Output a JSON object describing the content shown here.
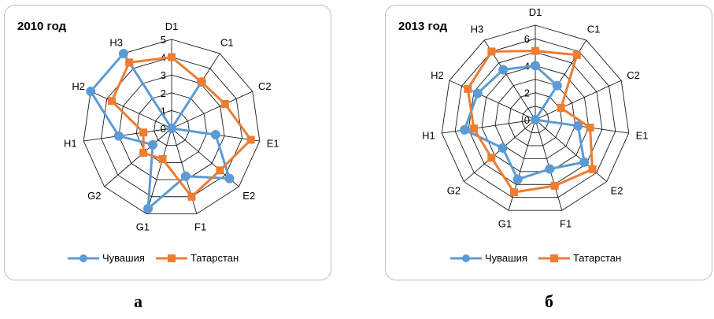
{
  "chart_data": [
    {
      "type": "radar",
      "title": "2010 год",
      "categories": [
        "D1",
        "C1",
        "C2",
        "E1",
        "E2",
        "F1",
        "G1",
        "G2",
        "H1",
        "H2",
        "H3"
      ],
      "radial_ticks": [
        "0",
        "1",
        "2",
        "3",
        "4",
        "5"
      ],
      "rmax": 5,
      "series": [
        {
          "name": "Чувашия",
          "color": "#5b9bd5",
          "marker": "circle",
          "values": [
            0,
            3.1,
            0,
            2.5,
            4.3,
            2.8,
            4.7,
            1.4,
            3.0,
            5.0,
            5.0
          ]
        },
        {
          "name": "Татарстан",
          "color": "#ed7d31",
          "marker": "square",
          "values": [
            4.0,
            3.1,
            3.3,
            4.5,
            3.6,
            4.0,
            1.8,
            2.1,
            1.6,
            3.7,
            4.4
          ]
        }
      ],
      "legend": "bottom",
      "caption": "а"
    },
    {
      "type": "radar",
      "title": "2013 год",
      "categories": [
        "D1",
        "C1",
        "C2",
        "E1",
        "E2",
        "F1",
        "G1",
        "G2",
        "H1",
        "H2",
        "H3"
      ],
      "radial_ticks": [
        "0",
        "2",
        "4",
        "6"
      ],
      "rmax": 7,
      "series": [
        {
          "name": "Чувашия",
          "color": "#5b9bd5",
          "marker": "circle",
          "values": [
            4.0,
            3.0,
            0,
            3.2,
            4.8,
            3.8,
            4.6,
            3.2,
            5.3,
            4.7,
            4.4
          ]
        },
        {
          "name": "Татарстан",
          "color": "#ed7d31",
          "marker": "square",
          "values": [
            5.1,
            5.7,
            2.1,
            4.1,
            5.6,
            5.1,
            5.6,
            4.3,
            4.6,
            5.5,
            6.0
          ]
        }
      ],
      "legend": "bottom",
      "caption": "б"
    }
  ]
}
